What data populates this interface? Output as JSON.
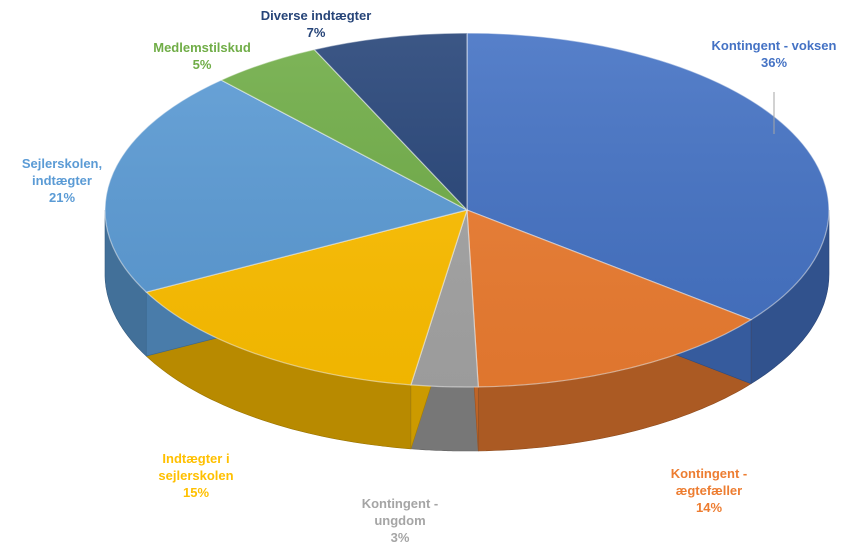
{
  "chart_data": {
    "type": "pie",
    "three_d": true,
    "start_at_top": true,
    "clockwise": true,
    "slices": [
      {
        "lines": [
          "Kontingent - voksen"
        ],
        "pct_label": "36%",
        "value": 36,
        "color": "#4472C4",
        "label_color": "#4472C4"
      },
      {
        "lines": [
          "Kontingent -",
          "ægtefæller"
        ],
        "pct_label": "14%",
        "value": 14,
        "color": "#ED7D31",
        "label_color": "#ED7D31"
      },
      {
        "lines": [
          "Kontingent -",
          "ungdom"
        ],
        "pct_label": "3%",
        "value": 3,
        "color": "#A5A5A5",
        "label_color": "#A5A5A5"
      },
      {
        "lines": [
          "Indtægter i",
          "sejlerskolen"
        ],
        "pct_label": "15%",
        "value": 15,
        "color": "#FFC000",
        "label_color": "#FFC000"
      },
      {
        "lines": [
          "Sejlerskolen,",
          "indtægter"
        ],
        "pct_label": "21%",
        "value": 21,
        "color": "#5B9BD5",
        "label_color": "#5B9BD5"
      },
      {
        "lines": [
          "Medlemstilskud"
        ],
        "pct_label": "5%",
        "value": 5,
        "color": "#70AD47",
        "label_color": "#70AD47"
      },
      {
        "lines": [
          "Diverse indtægter"
        ],
        "pct_label": "7%",
        "value": 7,
        "color": "#264478",
        "label_color": "#264478"
      }
    ]
  }
}
